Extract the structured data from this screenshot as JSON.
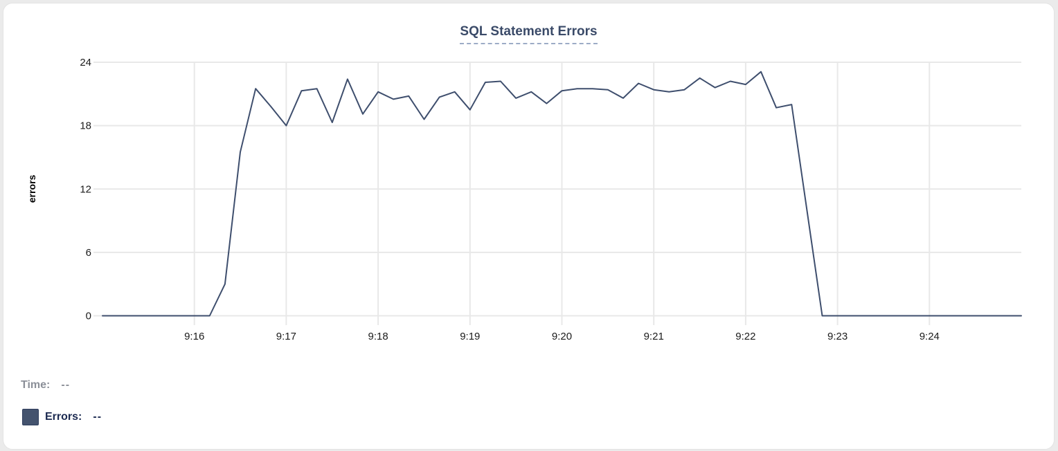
{
  "chart": {
    "title": "SQL Statement Errors"
  },
  "legend": {
    "time_label": "Time:",
    "time_value": "--",
    "errors_label": "Errors:",
    "errors_value": "--",
    "swatch_color": "#44536e"
  },
  "colors": {
    "line": "#3e4e6d",
    "title": "#3a4a68",
    "title_underline": "#9cabc6",
    "grid": "#e8e8e8",
    "axis_text": "#1b1b1b",
    "axis_title": "#000000",
    "legend_time": "#8b8f98",
    "legend_errors": "#1b2950"
  },
  "chart_data": {
    "type": "line",
    "title": "SQL Statement Errors",
    "xlabel": "",
    "ylabel": "errors",
    "x_ticks": [
      "9:16",
      "9:17",
      "9:18",
      "9:19",
      "9:20",
      "9:21",
      "9:22",
      "9:23",
      "9:24"
    ],
    "y_ticks": [
      0,
      6,
      12,
      18,
      24
    ],
    "ylim": [
      0,
      24
    ],
    "x_range": [
      "9:15:00",
      "9:25:00"
    ],
    "grid": true,
    "legend_position": "bottom-left",
    "series": [
      {
        "name": "Errors",
        "color": "#3e4e6d",
        "times": [
          "9:15:00",
          "9:15:10",
          "9:15:20",
          "9:15:30",
          "9:15:40",
          "9:15:50",
          "9:16:00",
          "9:16:10",
          "9:16:20",
          "9:16:30",
          "9:16:40",
          "9:16:50",
          "9:17:00",
          "9:17:10",
          "9:17:20",
          "9:17:30",
          "9:17:40",
          "9:17:50",
          "9:18:00",
          "9:18:10",
          "9:18:20",
          "9:18:30",
          "9:18:40",
          "9:18:50",
          "9:19:00",
          "9:19:10",
          "9:19:20",
          "9:19:30",
          "9:19:40",
          "9:19:50",
          "9:20:00",
          "9:20:10",
          "9:20:20",
          "9:20:30",
          "9:20:40",
          "9:20:50",
          "9:21:00",
          "9:21:10",
          "9:21:20",
          "9:21:30",
          "9:21:40",
          "9:21:50",
          "9:22:00",
          "9:22:10",
          "9:22:20",
          "9:22:30",
          "9:22:40",
          "9:22:50",
          "9:23:00",
          "9:23:10",
          "9:23:20",
          "9:23:30",
          "9:23:40",
          "9:23:50",
          "9:24:00",
          "9:24:10",
          "9:24:20",
          "9:24:30",
          "9:24:40",
          "9:24:50",
          "9:25:00"
        ],
        "values": [
          0,
          0,
          0,
          0,
          0,
          0,
          0,
          0,
          3,
          15.5,
          21.5,
          19.8,
          18,
          21.3,
          21.5,
          18.3,
          22.4,
          19.1,
          21.2,
          20.5,
          20.8,
          18.6,
          20.7,
          21.2,
          19.5,
          22.1,
          22.2,
          20.6,
          21.2,
          20.1,
          21.3,
          21.5,
          21.5,
          21.4,
          20.6,
          22,
          21.4,
          21.2,
          21.4,
          22.5,
          21.6,
          22.2,
          21.9,
          23.1,
          19.7,
          20,
          10,
          0,
          0,
          0,
          0,
          0,
          0,
          0,
          0,
          0,
          0,
          0,
          0,
          0,
          0
        ]
      }
    ]
  }
}
